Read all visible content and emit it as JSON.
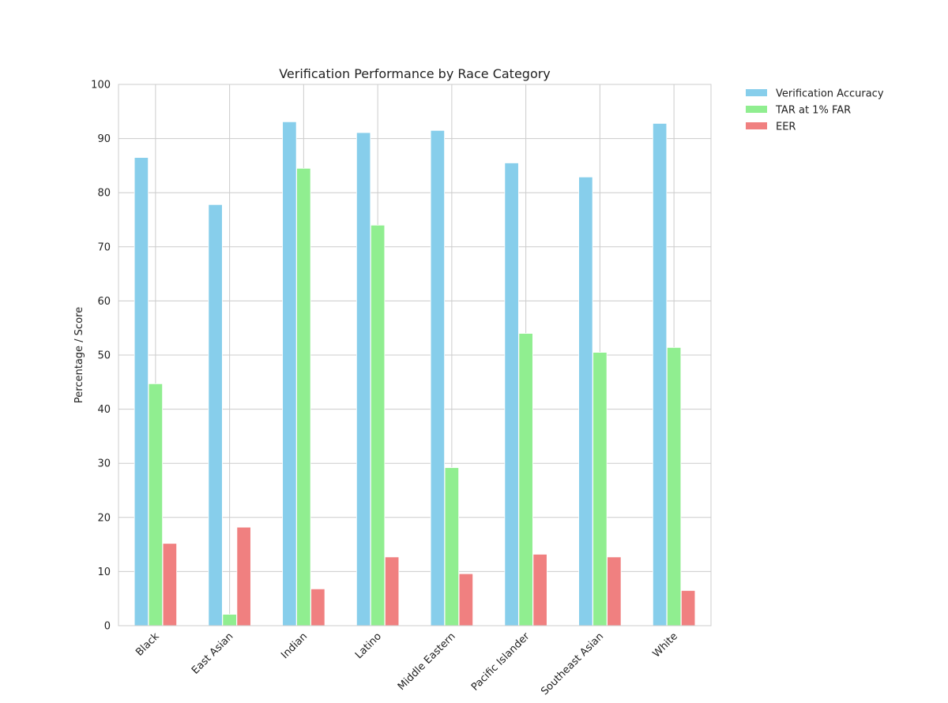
{
  "chart_data": {
    "type": "bar",
    "title": "Verification Performance by Race Category",
    "xlabel": "",
    "ylabel": "Percentage / Score",
    "ylim": [
      0,
      100
    ],
    "yticks": [
      0,
      10,
      20,
      30,
      40,
      50,
      60,
      70,
      80,
      90,
      100
    ],
    "grid": true,
    "legend_position": "outside-top-right",
    "categories": [
      "Black",
      "East Asian",
      "Indian",
      "Latino",
      "Middle Eastern",
      "Pacific Islander",
      "Southeast Asian",
      "White"
    ],
    "series": [
      {
        "name": "Verification Accuracy",
        "color": "#87CEEB",
        "values": [
          86.5,
          77.8,
          93.1,
          91.1,
          91.5,
          85.5,
          82.9,
          92.8
        ]
      },
      {
        "name": "TAR at 1% FAR",
        "color": "#90EE90",
        "values": [
          44.7,
          2.1,
          84.5,
          74.0,
          29.2,
          54.0,
          50.5,
          51.4
        ]
      },
      {
        "name": "EER",
        "color": "#F08080",
        "values": [
          15.2,
          18.2,
          6.8,
          12.7,
          9.6,
          13.2,
          12.7,
          6.5
        ]
      }
    ]
  }
}
